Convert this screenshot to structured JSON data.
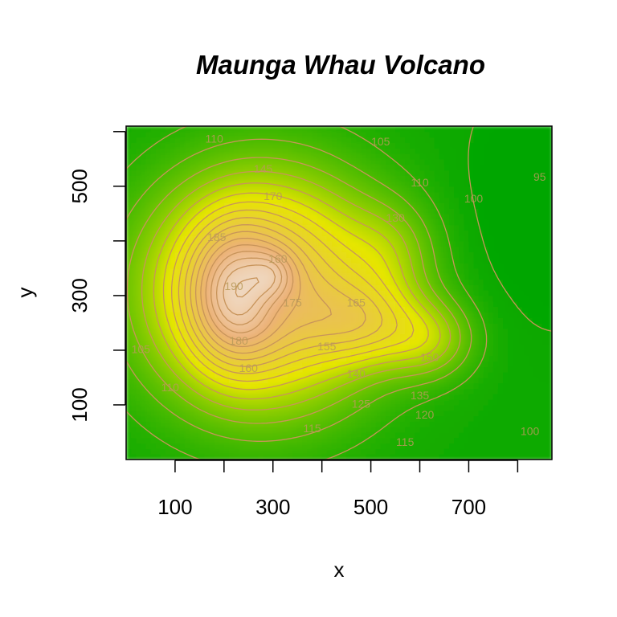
{
  "chart_data": {
    "type": "heatmap",
    "title": "Maunga Whau Volcano",
    "xlabel": "x",
    "ylabel": "y",
    "xlim": [
      0,
      870
    ],
    "ylim": [
      0,
      610
    ],
    "x_ticks": [
      100,
      200,
      300,
      400,
      500,
      600,
      700,
      800
    ],
    "x_tick_labels": [
      "100",
      "300",
      "500",
      "700"
    ],
    "y_ticks": [
      100,
      200,
      300,
      400,
      500,
      600
    ],
    "y_tick_labels": [
      "100",
      "300",
      "500"
    ],
    "z_range": [
      94,
      195
    ],
    "color_scale": [
      "#00a600",
      "#e6e600",
      "#ecb176",
      "#f2f2f2"
    ],
    "contour_color": "#c8945a",
    "contour_levels": [
      95,
      100,
      105,
      110,
      115,
      120,
      125,
      130,
      135,
      140,
      145,
      150,
      155,
      160,
      165,
      170,
      175,
      180,
      185,
      190
    ],
    "contour_labels": [
      {
        "text": "110",
        "x": 180,
        "y": 580
      },
      {
        "text": "105",
        "x": 520,
        "y": 575
      },
      {
        "text": "95",
        "x": 845,
        "y": 510
      },
      {
        "text": "110",
        "x": 600,
        "y": 500
      },
      {
        "text": "100",
        "x": 710,
        "y": 470
      },
      {
        "text": "145",
        "x": 280,
        "y": 525
      },
      {
        "text": "170",
        "x": 300,
        "y": 475
      },
      {
        "text": "130",
        "x": 550,
        "y": 435
      },
      {
        "text": "185",
        "x": 185,
        "y": 400
      },
      {
        "text": "160",
        "x": 310,
        "y": 360
      },
      {
        "text": "190",
        "x": 220,
        "y": 310
      },
      {
        "text": "175",
        "x": 340,
        "y": 280
      },
      {
        "text": "165",
        "x": 470,
        "y": 280
      },
      {
        "text": "180",
        "x": 230,
        "y": 210
      },
      {
        "text": "155",
        "x": 410,
        "y": 200
      },
      {
        "text": "150",
        "x": 620,
        "y": 180
      },
      {
        "text": "160",
        "x": 250,
        "y": 160
      },
      {
        "text": "140",
        "x": 470,
        "y": 150
      },
      {
        "text": "105",
        "x": 30,
        "y": 195
      },
      {
        "text": "110",
        "x": 90,
        "y": 125
      },
      {
        "text": "135",
        "x": 600,
        "y": 110
      },
      {
        "text": "125",
        "x": 480,
        "y": 95
      },
      {
        "text": "120",
        "x": 610,
        "y": 75
      },
      {
        "text": "115",
        "x": 380,
        "y": 50
      },
      {
        "text": "115",
        "x": 570,
        "y": 25
      },
      {
        "text": "100",
        "x": 825,
        "y": 45
      }
    ]
  }
}
